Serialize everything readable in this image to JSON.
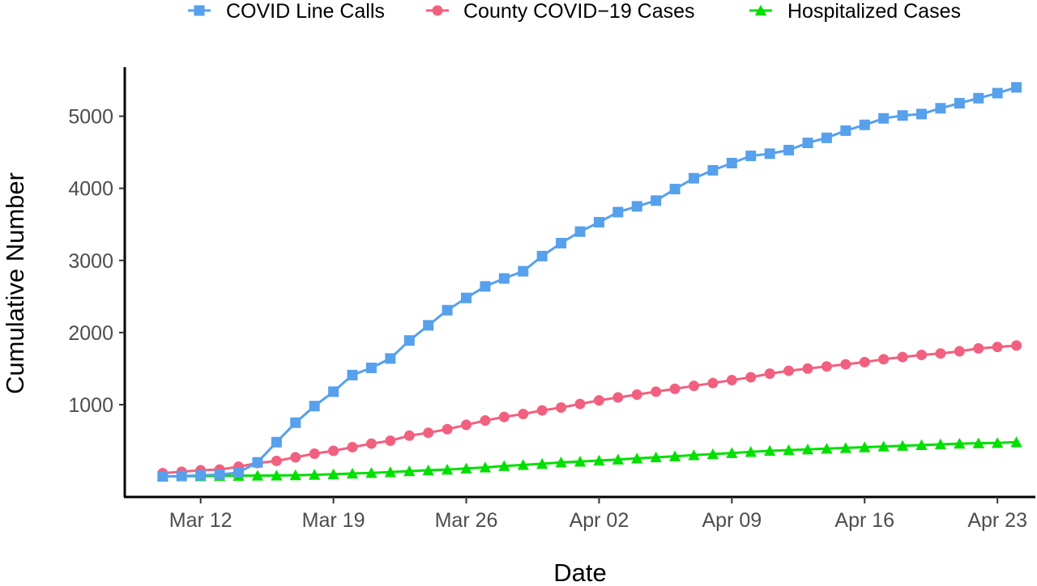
{
  "chart_data": {
    "type": "line",
    "title": "",
    "xlabel": "Date",
    "ylabel": "Cumulative Number",
    "x_type": "date",
    "x_start": "2020-03-10",
    "x_end": "2020-04-24",
    "xlim": [
      "2020-03-08",
      "2020-04-25"
    ],
    "ylim": [
      -280,
      5680
    ],
    "x_ticks": [
      {
        "date": "2020-03-12",
        "label": "Mar 12"
      },
      {
        "date": "2020-03-19",
        "label": "Mar 19"
      },
      {
        "date": "2020-03-26",
        "label": "Mar 26"
      },
      {
        "date": "2020-04-02",
        "label": "Apr 02"
      },
      {
        "date": "2020-04-09",
        "label": "Apr 09"
      },
      {
        "date": "2020-04-16",
        "label": "Apr 16"
      },
      {
        "date": "2020-04-23",
        "label": "Apr 23"
      }
    ],
    "y_ticks": [
      1000,
      2000,
      3000,
      4000,
      5000
    ],
    "grid": false,
    "legend_position": "top",
    "series": [
      {
        "name": "COVID Line Calls",
        "color": "#56a0ec",
        "marker": "square",
        "values": [
          5,
          10,
          20,
          30,
          60,
          200,
          480,
          750,
          980,
          1180,
          1410,
          1510,
          1640,
          1890,
          2100,
          2310,
          2480,
          2640,
          2750,
          2850,
          3060,
          3240,
          3400,
          3530,
          3670,
          3750,
          3830,
          3990,
          4140,
          4250,
          4350,
          4450,
          4480,
          4530,
          4630,
          4700,
          4800,
          4880,
          4970,
          5010,
          5030,
          5110,
          5180,
          5250,
          5320,
          5400
        ]
      },
      {
        "name": "County COVID−19 Cases",
        "color": "#f2607f",
        "marker": "circle",
        "values": [
          50,
          70,
          90,
          100,
          140,
          190,
          220,
          270,
          320,
          360,
          410,
          460,
          500,
          570,
          610,
          660,
          720,
          780,
          830,
          870,
          920,
          960,
          1010,
          1060,
          1100,
          1140,
          1180,
          1220,
          1260,
          1300,
          1340,
          1380,
          1430,
          1470,
          1500,
          1530,
          1560,
          1590,
          1630,
          1660,
          1690,
          1710,
          1740,
          1780,
          1800,
          1820
        ]
      },
      {
        "name": "Hospitalized Cases",
        "color": "#00e000",
        "marker": "triangle",
        "values": [
          5,
          null,
          8,
          12,
          14,
          16,
          18,
          22,
          28,
          35,
          45,
          55,
          65,
          78,
          90,
          100,
          115,
          130,
          150,
          165,
          180,
          200,
          210,
          225,
          240,
          255,
          270,
          285,
          300,
          315,
          330,
          345,
          360,
          370,
          380,
          390,
          400,
          410,
          420,
          430,
          440,
          450,
          460,
          465,
          470,
          480
        ]
      }
    ]
  }
}
